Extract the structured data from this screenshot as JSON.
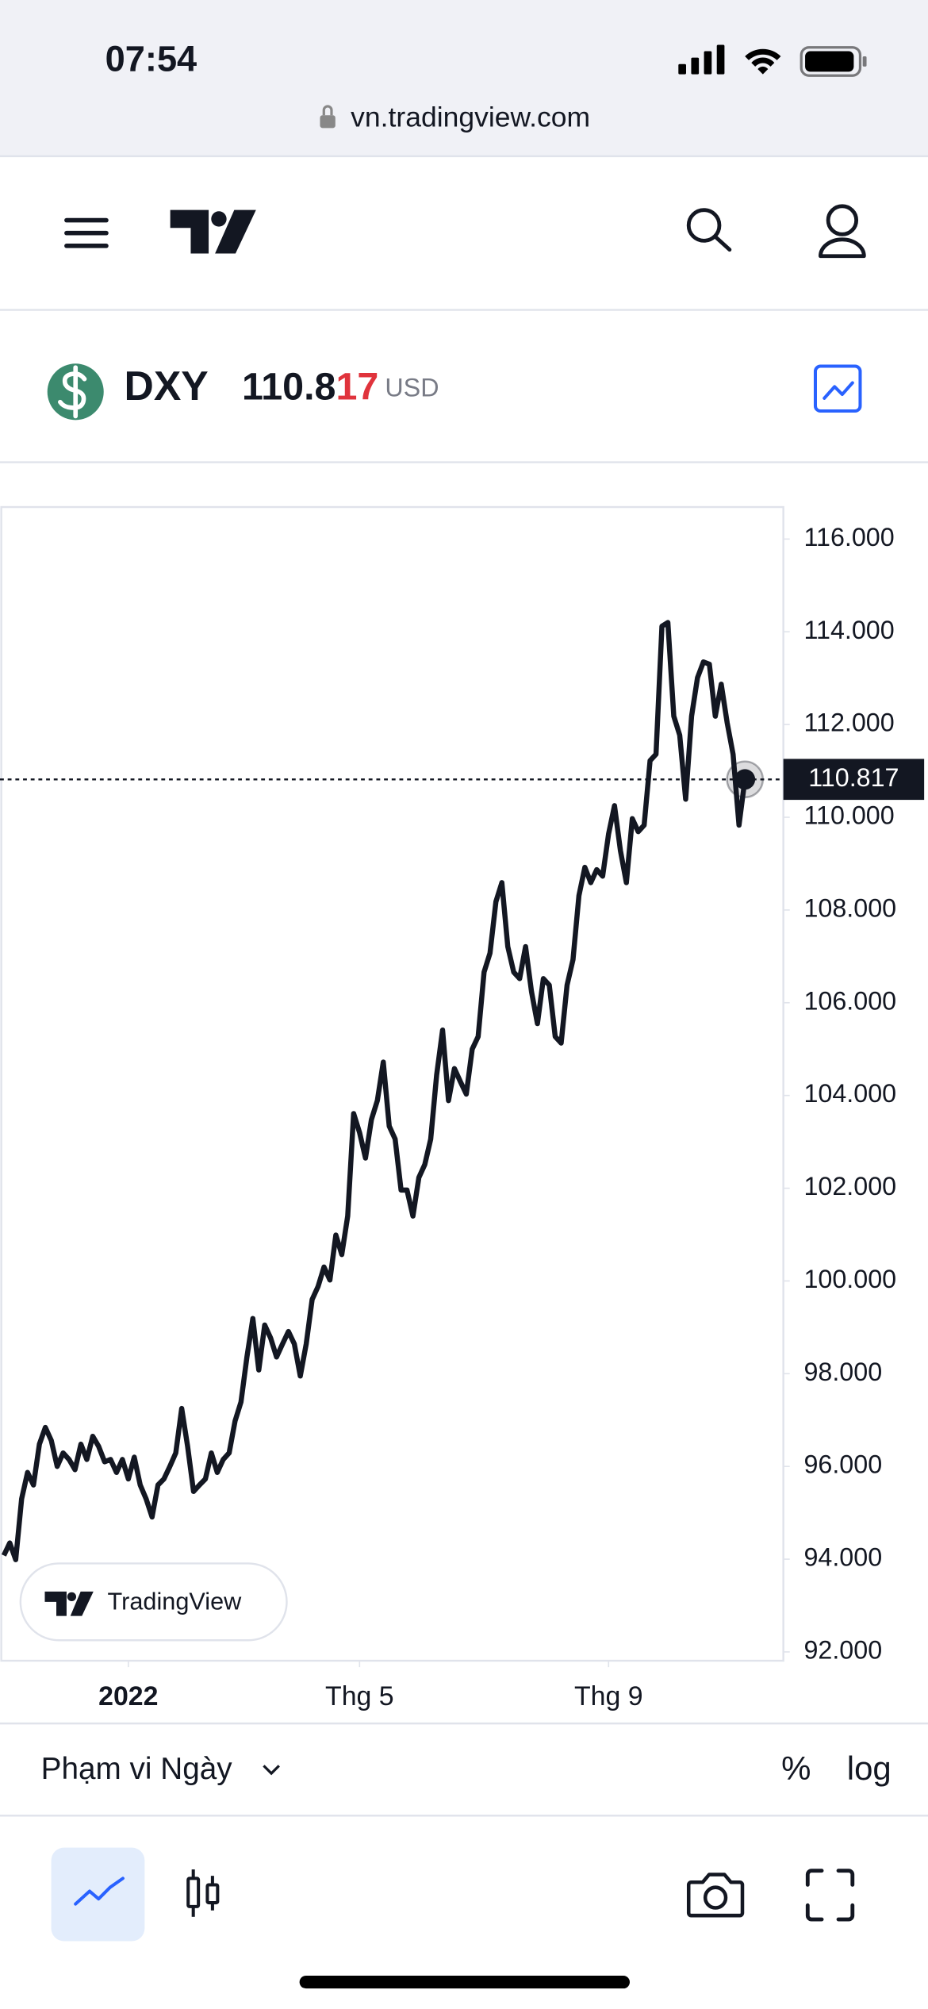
{
  "status_bar": {
    "time": "07:54",
    "url": "vn.tradingview.com"
  },
  "symbol": {
    "ticker": "DXY",
    "price_main": "110.8",
    "price_highlight": "17",
    "currency": "USD"
  },
  "branding": "TradingView",
  "chart_data": {
    "type": "line",
    "color": "#131722",
    "values": [
      94.08,
      94.35,
      93.99,
      95.3,
      95.87,
      95.6,
      96.48,
      96.84,
      96.56,
      96.0,
      96.29,
      96.15,
      95.93,
      96.48,
      96.15,
      96.65,
      96.43,
      96.1,
      96.15,
      95.87,
      96.15,
      95.73,
      96.2,
      95.6,
      95.3,
      94.91,
      95.6,
      95.73,
      96.0,
      96.29,
      97.25,
      96.43,
      95.46,
      95.6,
      95.73,
      96.29,
      95.87,
      96.15,
      96.29,
      96.98,
      97.39,
      98.36,
      99.19,
      98.08,
      99.05,
      98.77,
      98.36,
      98.64,
      98.91,
      98.64,
      97.95,
      98.64,
      99.6,
      99.88,
      100.3,
      100.02,
      100.99,
      100.57,
      101.4,
      103.61,
      103.2,
      102.65,
      103.48,
      103.89,
      104.72,
      103.34,
      103.06,
      101.96,
      101.96,
      101.4,
      102.23,
      102.51,
      103.06,
      104.44,
      105.41,
      103.89,
      104.58,
      104.3,
      104.03,
      105.0,
      105.27,
      106.66,
      107.07,
      108.18,
      108.59,
      107.21,
      106.66,
      106.52,
      107.21,
      106.24,
      105.55,
      106.52,
      106.38,
      105.27,
      105.13,
      106.38,
      106.93,
      108.31,
      108.92,
      108.59,
      108.87,
      108.73,
      109.64,
      110.25,
      109.28,
      108.59,
      109.97,
      109.69,
      109.83,
      111.22,
      111.36,
      114.12,
      114.2,
      112.18,
      111.77,
      110.39,
      112.18,
      113.01,
      113.35,
      113.3,
      112.18,
      112.87,
      112.04,
      111.36,
      109.83,
      110.817
    ],
    "xlim": [
      -0.43,
      131.48
    ],
    "xticks": [
      {
        "value": 21,
        "label": "2022"
      },
      {
        "value": 60,
        "label": "Thg 5"
      },
      {
        "value": 102,
        "label": "Thg 9"
      }
    ],
    "ylim": [
      91.81,
      116.69
    ],
    "yticks": [
      {
        "value": 116,
        "label": "116.000"
      },
      {
        "value": 114,
        "label": "114.000"
      },
      {
        "value": 112,
        "label": "112.000"
      },
      {
        "value": 110,
        "label": "110.000"
      },
      {
        "value": 108,
        "label": "108.000"
      },
      {
        "value": 106,
        "label": "106.000"
      },
      {
        "value": 104,
        "label": "104.000"
      },
      {
        "value": 102,
        "label": "102.000"
      },
      {
        "value": 100,
        "label": "100.000"
      },
      {
        "value": 98,
        "label": "98.000"
      },
      {
        "value": 96,
        "label": "96.000"
      },
      {
        "value": 94,
        "label": "94.000"
      },
      {
        "value": 92,
        "label": "92.000"
      }
    ]
  },
  "range_selector": {
    "label": "Phạm vi Ngày"
  },
  "scale_options": {
    "percent": "%",
    "log": "log"
  }
}
